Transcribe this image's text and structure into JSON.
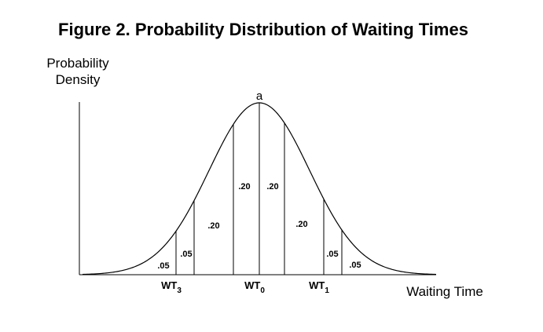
{
  "title": "Figure 2.  Probability Distribution of Waiting Times",
  "y_axis_label": [
    "Probability",
    "Density"
  ],
  "x_axis_label": "Waiting Time",
  "peak_label": "a",
  "region_labels": [
    ".05",
    ".05",
    ".20",
    ".20",
    ".20",
    ".20",
    ".05",
    ".05"
  ],
  "markers": [
    {
      "base": "WT",
      "sub": "3"
    },
    {
      "base": "WT",
      "sub": "0"
    },
    {
      "base": "WT",
      "sub": "1"
    }
  ]
}
